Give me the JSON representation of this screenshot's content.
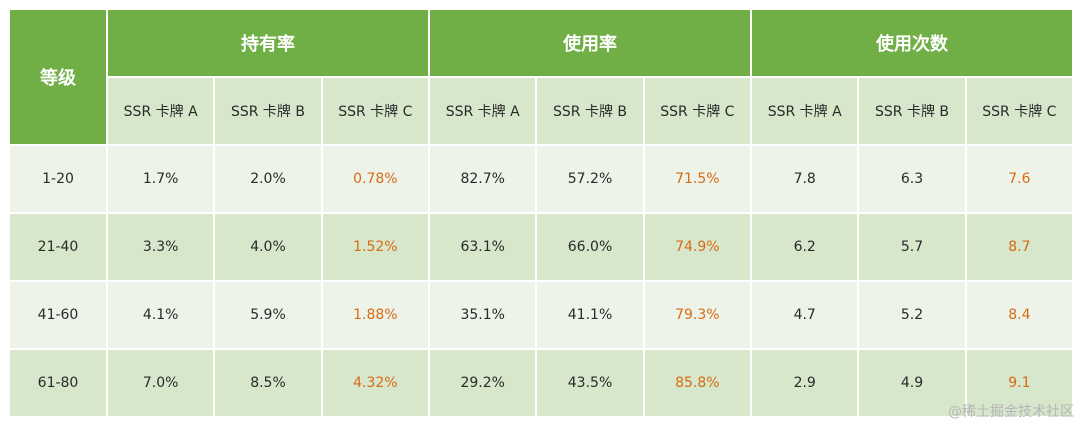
{
  "chart_data": {
    "type": "table",
    "level_header": "等级",
    "groups": [
      {
        "name": "持有率",
        "columns": [
          "SSR 卡牌 A",
          "SSR 卡牌 B",
          "SSR 卡牌 C"
        ]
      },
      {
        "name": "使用率",
        "columns": [
          "SSR 卡牌 A",
          "SSR 卡牌 B",
          "SSR 卡牌 C"
        ]
      },
      {
        "name": "使用次数",
        "columns": [
          "SSR 卡牌 A",
          "SSR 卡牌 B",
          "SSR 卡牌 C"
        ]
      }
    ],
    "rows": [
      {
        "level": "1-20",
        "cells": [
          "1.7%",
          "2.0%",
          "0.78%",
          "82.7%",
          "57.2%",
          "71.5%",
          "7.8",
          "6.3",
          "7.6"
        ]
      },
      {
        "level": "21-40",
        "cells": [
          "3.3%",
          "4.0%",
          "1.52%",
          "63.1%",
          "66.0%",
          "74.9%",
          "6.2",
          "5.7",
          "8.7"
        ]
      },
      {
        "level": "41-60",
        "cells": [
          "4.1%",
          "5.9%",
          "1.88%",
          "35.1%",
          "41.1%",
          "79.3%",
          "4.7",
          "5.2",
          "8.4"
        ]
      },
      {
        "level": "61-80",
        "cells": [
          "7.0%",
          "8.5%",
          "4.32%",
          "29.2%",
          "43.5%",
          "85.8%",
          "2.9",
          "4.9",
          "9.1"
        ]
      }
    ],
    "highlight_column": "SSR 卡牌 C"
  },
  "colors": {
    "header_green": "#6faf45",
    "subheader_bg": "#d7e7cb",
    "row_light": "#edf3e8",
    "row_dark": "#d7e7cb",
    "highlight_text": "#d86a14"
  },
  "watermark": "@稀土掘金技术社区"
}
